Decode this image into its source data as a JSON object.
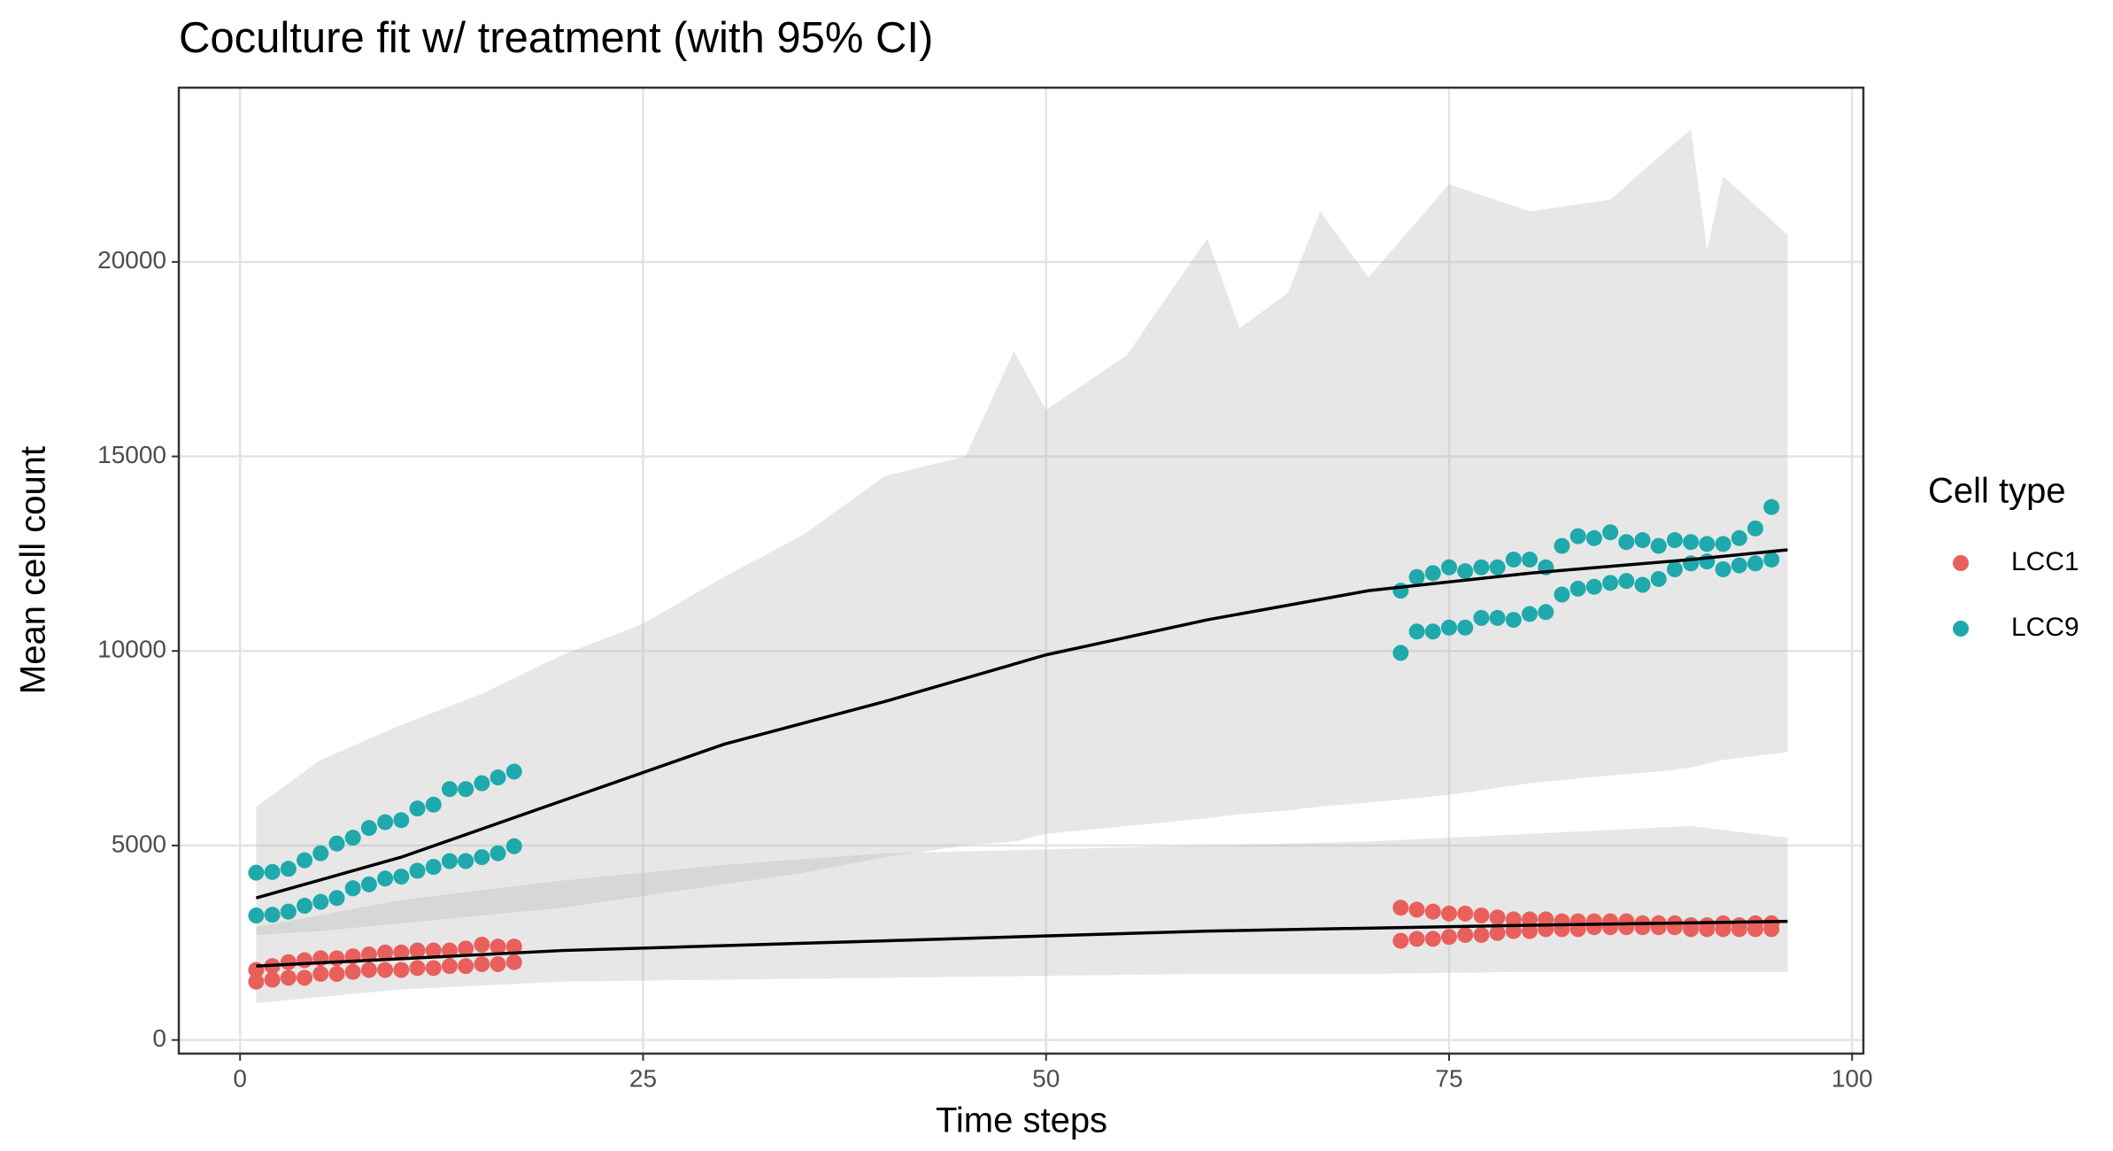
{
  "chart_data": {
    "type": "scatter",
    "title": "Coculture fit w/ treatment (with 95% CI)",
    "x_label": "Time steps",
    "y_label": "Mean cell count",
    "legend_title": "Cell type",
    "xlim": [
      -3.8,
      100.7
    ],
    "ylim": [
      -350,
      24480
    ],
    "xticks": [
      0,
      25,
      50,
      75,
      100
    ],
    "yticks": [
      0,
      5000,
      10000,
      15000,
      20000
    ],
    "grid": true,
    "series": [
      {
        "name": "LCC1",
        "color": "#e8605c",
        "x": [
          1,
          2,
          3,
          4,
          5,
          6,
          7,
          8,
          9,
          10,
          11,
          12,
          13,
          14,
          15,
          16,
          17,
          1,
          2,
          3,
          4,
          5,
          6,
          7,
          8,
          9,
          10,
          11,
          12,
          13,
          14,
          15,
          16,
          17,
          72,
          73,
          74,
          75,
          76,
          77,
          78,
          79,
          80,
          81,
          82,
          83,
          84,
          85,
          86,
          87,
          88,
          89,
          90,
          91,
          92,
          93,
          94,
          95,
          72,
          73,
          74,
          75,
          76,
          77,
          78,
          79,
          80,
          81,
          82,
          83,
          84,
          85,
          86,
          87,
          88,
          89,
          90,
          91,
          92,
          93,
          94,
          95
        ],
        "values": [
          1800,
          1900,
          2000,
          2050,
          2100,
          2100,
          2150,
          2200,
          2250,
          2250,
          2300,
          2300,
          2300,
          2350,
          2450,
          2400,
          2400,
          1500,
          1550,
          1600,
          1600,
          1700,
          1700,
          1750,
          1800,
          1800,
          1800,
          1850,
          1850,
          1900,
          1900,
          1950,
          1950,
          2000,
          3400,
          3350,
          3300,
          3250,
          3250,
          3200,
          3150,
          3100,
          3100,
          3100,
          3050,
          3050,
          3050,
          3050,
          3050,
          3000,
          3000,
          3000,
          2950,
          2950,
          3000,
          2950,
          3000,
          3000,
          2550,
          2600,
          2600,
          2650,
          2700,
          2700,
          2750,
          2800,
          2800,
          2850,
          2850,
          2850,
          2900,
          2900,
          2900,
          2900,
          2900,
          2900,
          2850,
          2850,
          2850,
          2850,
          2850,
          2850
        ]
      },
      {
        "name": "LCC9",
        "color": "#1fa9ac",
        "x": [
          1,
          2,
          3,
          4,
          5,
          6,
          7,
          8,
          9,
          10,
          11,
          12,
          13,
          14,
          15,
          16,
          17,
          1,
          2,
          3,
          4,
          5,
          6,
          7,
          8,
          9,
          10,
          11,
          12,
          13,
          14,
          15,
          16,
          17,
          72,
          73,
          74,
          75,
          76,
          77,
          78,
          79,
          80,
          81,
          82,
          83,
          84,
          85,
          86,
          87,
          88,
          89,
          90,
          91,
          92,
          93,
          94,
          95,
          72,
          73,
          74,
          75,
          76,
          77,
          78,
          79,
          80,
          81,
          82,
          83,
          84,
          85,
          86,
          87,
          88,
          89,
          90,
          91,
          92,
          93,
          94,
          95
        ],
        "values": [
          4300,
          4320,
          4400,
          4620,
          4800,
          5050,
          5200,
          5450,
          5600,
          5650,
          5950,
          6050,
          6450,
          6450,
          6600,
          6750,
          6900,
          3200,
          3220,
          3300,
          3450,
          3550,
          3650,
          3900,
          4000,
          4150,
          4200,
          4350,
          4450,
          4600,
          4600,
          4700,
          4800,
          4980,
          11550,
          11900,
          12000,
          12150,
          12050,
          12150,
          12150,
          12350,
          12350,
          12150,
          12700,
          12950,
          12900,
          13050,
          12800,
          12850,
          12700,
          12850,
          12800,
          12750,
          12750,
          12900,
          13150,
          13700,
          9950,
          10500,
          10500,
          10600,
          10600,
          10850,
          10850,
          10800,
          10950,
          11000,
          11450,
          11600,
          11650,
          11750,
          11800,
          11700,
          11850,
          12100,
          12250,
          12300,
          12100,
          12200,
          12250,
          12350
        ]
      }
    ],
    "ribbons": [
      {
        "x": [
          1,
          5,
          10,
          15,
          20,
          25,
          30,
          35,
          40,
          45,
          48,
          50,
          55,
          60,
          62,
          65,
          67,
          70,
          75,
          80,
          85,
          88,
          90,
          91,
          92,
          96
        ],
        "upper": [
          6000,
          7200,
          8100,
          8900,
          9900,
          10700,
          11900,
          13000,
          14500,
          15000,
          17700,
          16200,
          17600,
          20600,
          18300,
          19200,
          21300,
          19600,
          22000,
          21300,
          21600,
          22700,
          23400,
          20300,
          22200,
          20700
        ],
        "lower": [
          2700,
          2800,
          3000,
          3200,
          3400,
          3700,
          4000,
          4300,
          4700,
          5000,
          5100,
          5300,
          5500,
          5700,
          5800,
          5900,
          6000,
          6100,
          6300,
          6600,
          6800,
          6900,
          7000,
          7100,
          7200,
          7400
        ]
      },
      {
        "x": [
          1,
          10,
          20,
          30,
          40,
          50,
          60,
          70,
          80,
          90,
          96
        ],
        "upper": [
          2900,
          3600,
          4100,
          4500,
          4800,
          4900,
          5000,
          5100,
          5300,
          5500,
          5200
        ],
        "lower": [
          950,
          1300,
          1500,
          1550,
          1600,
          1650,
          1700,
          1700,
          1750,
          1750,
          1750
        ]
      }
    ],
    "fits": [
      {
        "color": "#000000",
        "x": [
          1,
          10,
          20,
          30,
          40,
          50,
          60,
          70,
          80,
          90,
          96
        ],
        "values": [
          3650,
          4700,
          6150,
          7600,
          8700,
          9900,
          10800,
          11550,
          12000,
          12350,
          12600
        ]
      },
      {
        "color": "#000000",
        "x": [
          1,
          20,
          40,
          60,
          80,
          96
        ],
        "values": [
          1900,
          2300,
          2550,
          2800,
          2950,
          3050
        ]
      }
    ]
  }
}
